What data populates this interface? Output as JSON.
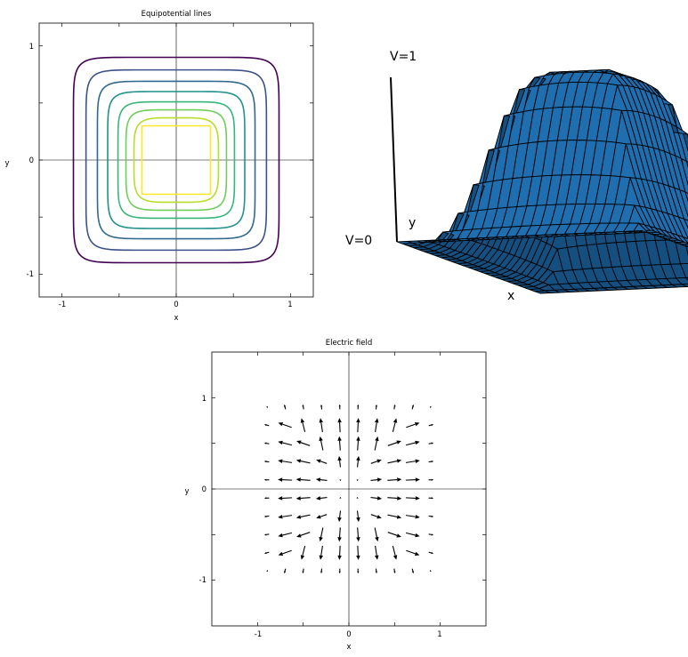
{
  "chart_data": [
    {
      "type": "line",
      "title": "Equipotential lines",
      "xlabel": "x",
      "ylabel": "y",
      "xlim": [
        -1.2,
        1.2
      ],
      "ylim": [
        -1.2,
        1.2
      ],
      "xticks": [
        "-1",
        "0",
        "1"
      ],
      "yticks": [
        "1",
        "0",
        "-1"
      ],
      "grid": false,
      "contours": [
        {
          "halfwidth": 0.9,
          "color": "#440154"
        },
        {
          "halfwidth": 0.79,
          "color": "#3b528b"
        },
        {
          "halfwidth": 0.69,
          "color": "#31688e"
        },
        {
          "halfwidth": 0.6,
          "color": "#21918c"
        },
        {
          "halfwidth": 0.51,
          "color": "#35b779"
        },
        {
          "halfwidth": 0.44,
          "color": "#6ece58"
        },
        {
          "halfwidth": 0.37,
          "color": "#b5de2b"
        },
        {
          "halfwidth": 0.3,
          "color": "#fde725"
        }
      ]
    },
    {
      "type": "surface",
      "labels": {
        "top": "V=1",
        "bottom": "V=0",
        "y": "y",
        "x": "x"
      },
      "surface_color": "#1f6fb0",
      "grid_n": 26,
      "plateau_halfwidth": 0.3
    },
    {
      "type": "quiver",
      "title": "Electric field",
      "xlabel": "x",
      "ylabel": "y",
      "xlim": [
        -1.5,
        1.5
      ],
      "ylim": [
        -1.5,
        1.5
      ],
      "xticks": [
        "-1",
        "0",
        "1"
      ],
      "yticks": [
        "1",
        "0",
        "-1"
      ],
      "grid": false,
      "grid_points": [
        -0.9,
        -0.7,
        -0.5,
        -0.3,
        -0.1,
        0.1,
        0.3,
        0.5,
        0.7,
        0.9
      ]
    }
  ]
}
